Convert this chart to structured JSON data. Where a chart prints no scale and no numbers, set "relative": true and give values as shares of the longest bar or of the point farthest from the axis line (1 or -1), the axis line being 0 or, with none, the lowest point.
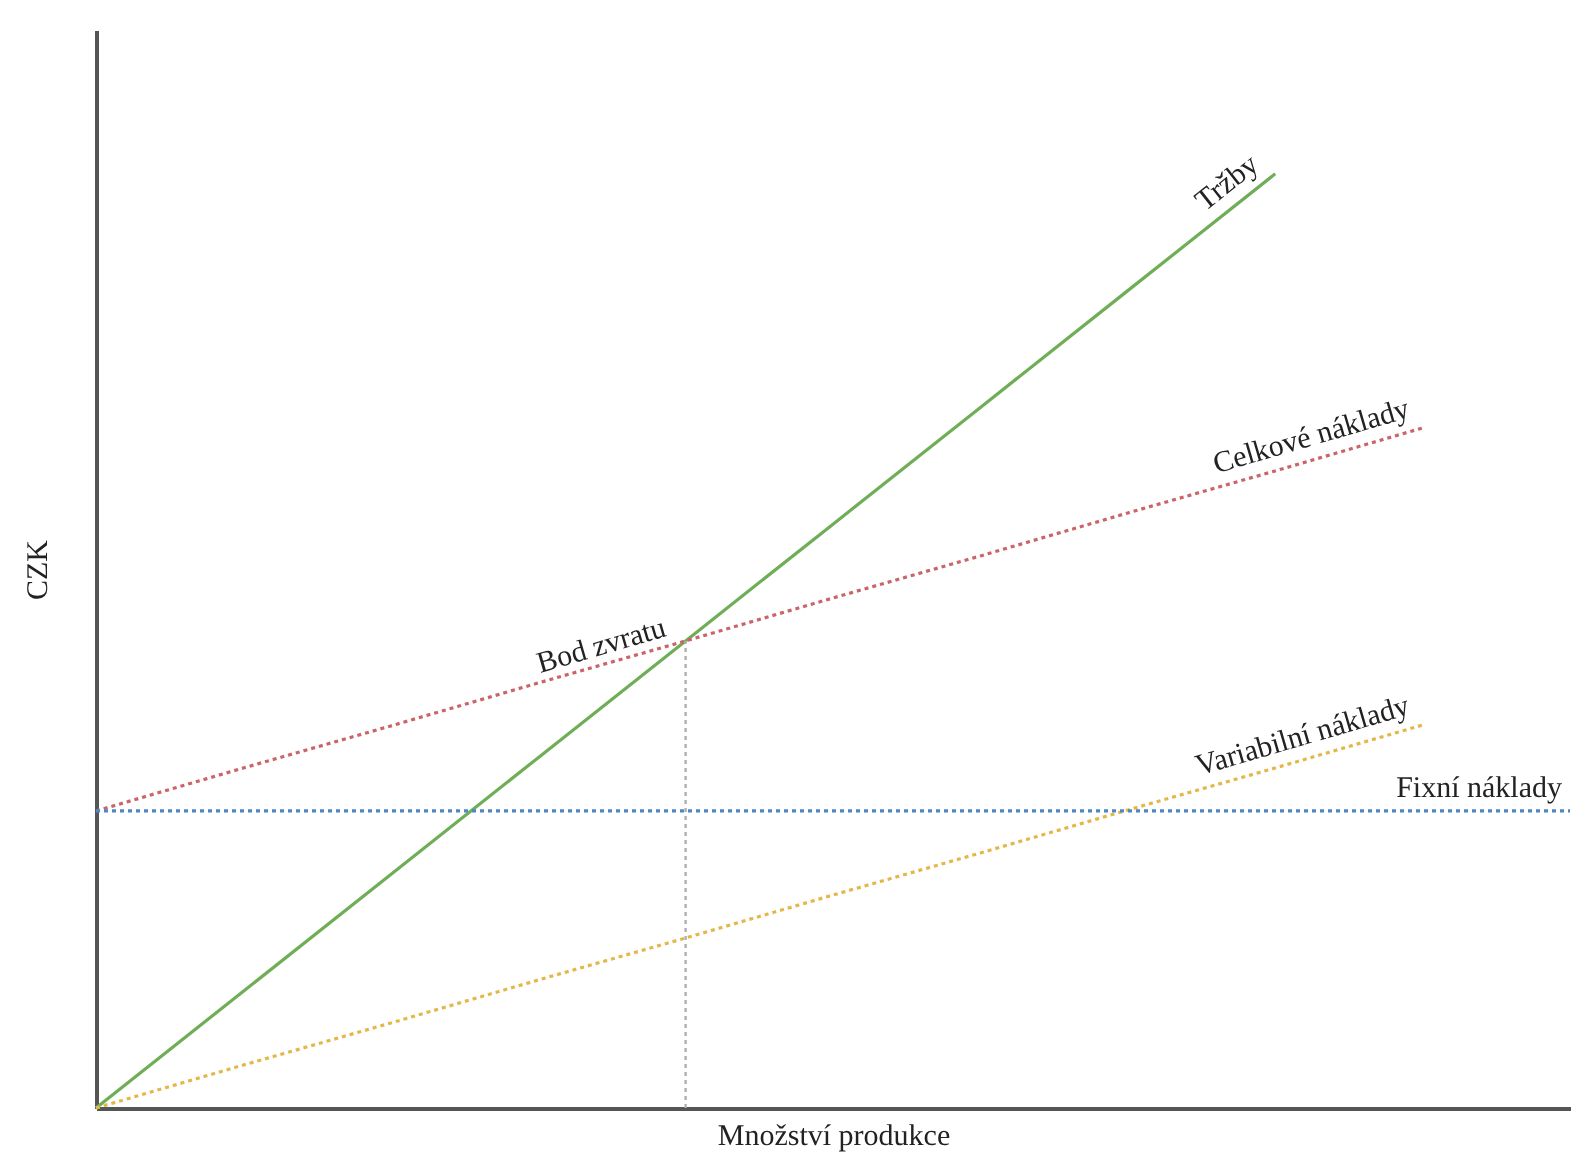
{
  "chart_data": {
    "type": "line",
    "relative": true,
    "xlabel": "Množství produkce",
    "ylabel": "CZK",
    "categories": [
      null,
      null,
      null,
      null,
      null,
      null,
      null,
      null,
      null,
      null,
      null
    ],
    "series": [
      {
        "name": "Tržby",
        "color": "#6fae57",
        "line_style": "solid",
        "values": [
          0,
          0.125,
          0.25,
          0.375,
          0.5,
          0.625,
          0.75,
          0.875,
          1,
          null,
          null
        ]
      },
      {
        "name": "Celkové náklady",
        "color": "#c9646a",
        "line_style": "dotted",
        "values": [
          0.318,
          0.364,
          0.409,
          0.455,
          0.5,
          0.546,
          0.591,
          0.637,
          0.682,
          0.728,
          null
        ]
      },
      {
        "name": "Variabilní náklady",
        "color": "#e3b84a",
        "line_style": "dotted",
        "values": [
          0,
          0.046,
          0.091,
          0.137,
          0.182,
          0.228,
          0.273,
          0.319,
          0.364,
          0.41,
          null
        ]
      },
      {
        "name": "Fixní náklady",
        "color": "#4f86c6",
        "line_style": "dotted",
        "values": [
          0.318,
          0.318,
          0.318,
          0.318,
          0.318,
          0.318,
          0.318,
          0.318,
          0.318,
          0.318,
          0.318
        ]
      }
    ],
    "annotations": [
      "Bod zvratu"
    ],
    "grid": false,
    "marker": "none"
  }
}
